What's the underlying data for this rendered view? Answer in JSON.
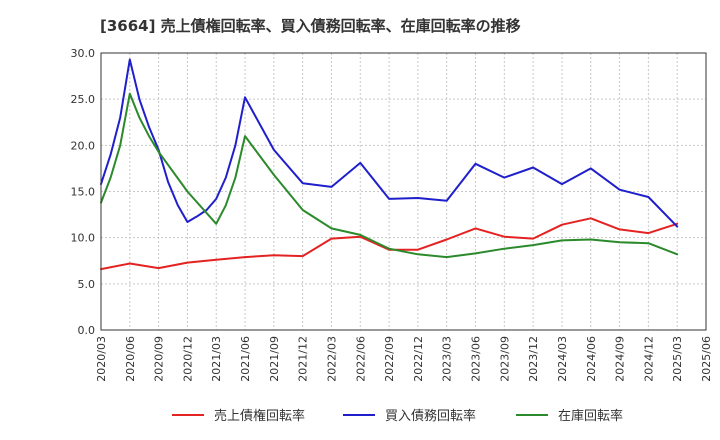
{
  "chart_data": {
    "type": "line",
    "title": "[3664]  売上債権回転率、買入債務回転率、在庫回転率の推移",
    "xlabel": "",
    "ylabel": "",
    "ylim": [
      0,
      30
    ],
    "yticks": [
      "0.0",
      "5.0",
      "10.0",
      "15.0",
      "20.0",
      "25.0",
      "30.0"
    ],
    "xticks": [
      "2020/03",
      "2020/06",
      "2020/09",
      "2020/12",
      "2021/03",
      "2021/06",
      "2021/09",
      "2021/12",
      "2022/03",
      "2022/06",
      "2022/09",
      "2022/12",
      "2023/03",
      "2023/06",
      "2023/09",
      "2023/12",
      "2024/03",
      "2024/06",
      "2024/09",
      "2024/12",
      "2025/03",
      "2025/06"
    ],
    "grid": true,
    "legend_position": "bottom",
    "series": [
      {
        "name": "売上債権回転率",
        "color": "#e52222",
        "points": [
          [
            "2020/03",
            6.6
          ],
          [
            "2020/06",
            7.2
          ],
          [
            "2020/09",
            6.7
          ],
          [
            "2020/12",
            7.3
          ],
          [
            "2021/03",
            7.6
          ],
          [
            "2021/06",
            7.9
          ],
          [
            "2021/09",
            8.1
          ],
          [
            "2021/12",
            8.0
          ],
          [
            "2022/03",
            9.9
          ],
          [
            "2022/06",
            10.1
          ],
          [
            "2022/09",
            8.7
          ],
          [
            "2022/12",
            8.7
          ],
          [
            "2023/03",
            9.8
          ],
          [
            "2023/06",
            11.0
          ],
          [
            "2023/09",
            10.1
          ],
          [
            "2023/12",
            9.9
          ],
          [
            "2024/03",
            11.4
          ],
          [
            "2024/06",
            12.1
          ],
          [
            "2024/09",
            10.9
          ],
          [
            "2024/12",
            10.5
          ],
          [
            "2025/03",
            11.5
          ]
        ]
      },
      {
        "name": "買入債務回転率",
        "color": "#1f1fcc",
        "points": [
          [
            "2020/03",
            15.8
          ],
          [
            "2020/04",
            19.0
          ],
          [
            "2020/05",
            23.0
          ],
          [
            "2020/06",
            29.3
          ],
          [
            "2020/07",
            25.0
          ],
          [
            "2020/08",
            22.0
          ],
          [
            "2020/09",
            19.5
          ],
          [
            "2020/10",
            16.0
          ],
          [
            "2020/11",
            13.5
          ],
          [
            "2020/12",
            11.7
          ],
          [
            "2021/01",
            12.3
          ],
          [
            "2021/02",
            13.0
          ],
          [
            "2021/03",
            14.2
          ],
          [
            "2021/04",
            16.5
          ],
          [
            "2021/05",
            20.0
          ],
          [
            "2021/06",
            25.2
          ],
          [
            "2021/09",
            19.5
          ],
          [
            "2021/12",
            15.9
          ],
          [
            "2022/03",
            15.5
          ],
          [
            "2022/06",
            18.1
          ],
          [
            "2022/09",
            14.2
          ],
          [
            "2022/12",
            14.3
          ],
          [
            "2023/03",
            14.0
          ],
          [
            "2023/06",
            18.0
          ],
          [
            "2023/09",
            16.5
          ],
          [
            "2023/12",
            17.6
          ],
          [
            "2024/03",
            15.8
          ],
          [
            "2024/06",
            17.5
          ],
          [
            "2024/09",
            15.2
          ],
          [
            "2024/12",
            14.4
          ],
          [
            "2025/03",
            11.2
          ]
        ]
      },
      {
        "name": "在庫回転率",
        "color": "#2b8a2b",
        "points": [
          [
            "2020/03",
            13.8
          ],
          [
            "2020/04",
            16.5
          ],
          [
            "2020/05",
            20.0
          ],
          [
            "2020/06",
            25.6
          ],
          [
            "2020/07",
            23.0
          ],
          [
            "2020/08",
            21.0
          ],
          [
            "2020/09",
            19.3
          ],
          [
            "2020/12",
            15.0
          ],
          [
            "2021/03",
            11.5
          ],
          [
            "2021/04",
            13.5
          ],
          [
            "2021/05",
            16.5
          ],
          [
            "2021/06",
            21.0
          ],
          [
            "2021/09",
            16.8
          ],
          [
            "2021/12",
            13.0
          ],
          [
            "2022/03",
            11.0
          ],
          [
            "2022/06",
            10.3
          ],
          [
            "2022/09",
            8.8
          ],
          [
            "2022/12",
            8.2
          ],
          [
            "2023/03",
            7.9
          ],
          [
            "2023/06",
            8.3
          ],
          [
            "2023/09",
            8.8
          ],
          [
            "2023/12",
            9.2
          ],
          [
            "2024/03",
            9.7
          ],
          [
            "2024/06",
            9.8
          ],
          [
            "2024/09",
            9.5
          ],
          [
            "2024/12",
            9.4
          ],
          [
            "2025/03",
            8.2
          ]
        ]
      }
    ]
  }
}
